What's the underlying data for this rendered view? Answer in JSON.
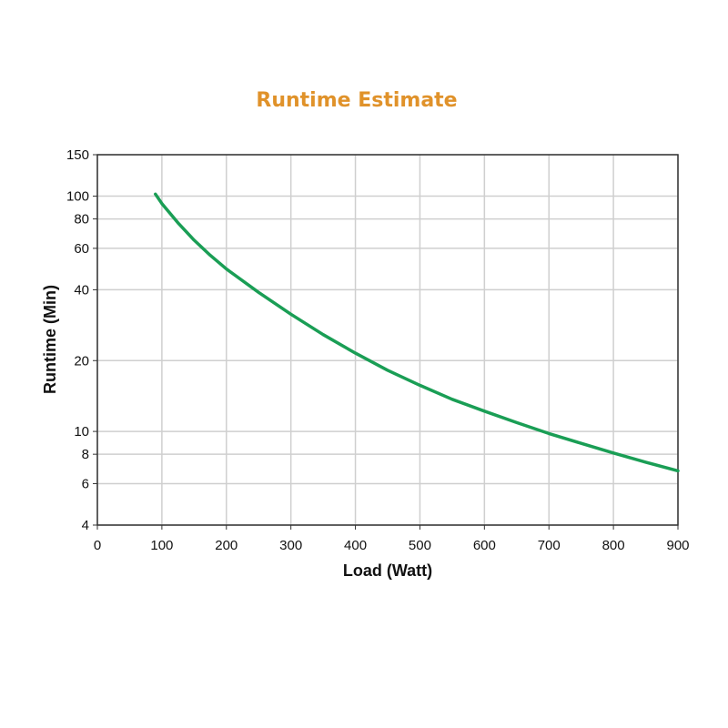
{
  "chart_data": {
    "type": "line",
    "title": "Runtime Estimate",
    "xlabel": "Load (Watt)",
    "ylabel": "Runtime (Min)",
    "xlim": [
      0,
      900
    ],
    "ylim": [
      4,
      150
    ],
    "y_scale": "log",
    "grid": true,
    "x_ticks": [
      "0",
      "100",
      "200",
      "300",
      "400",
      "500",
      "600",
      "700",
      "800",
      "900"
    ],
    "y_ticks": [
      "150",
      "100",
      "80",
      "60",
      "40",
      "20",
      "10",
      "8",
      "6",
      "4"
    ],
    "series": [
      {
        "color": "#1a9e55",
        "x": [
          90,
          100,
          125,
          150,
          175,
          200,
          250,
          300,
          350,
          400,
          450,
          500,
          550,
          600,
          650,
          700,
          750,
          800,
          850,
          900
        ],
        "y": [
          102,
          93,
          77,
          65,
          56,
          49,
          39,
          31.5,
          25.8,
          21.5,
          18.2,
          15.7,
          13.7,
          12.2,
          10.9,
          9.8,
          8.9,
          8.1,
          7.4,
          6.8
        ]
      }
    ],
    "title_color": "#e0922a",
    "grid_color": "#cfcfcf"
  }
}
